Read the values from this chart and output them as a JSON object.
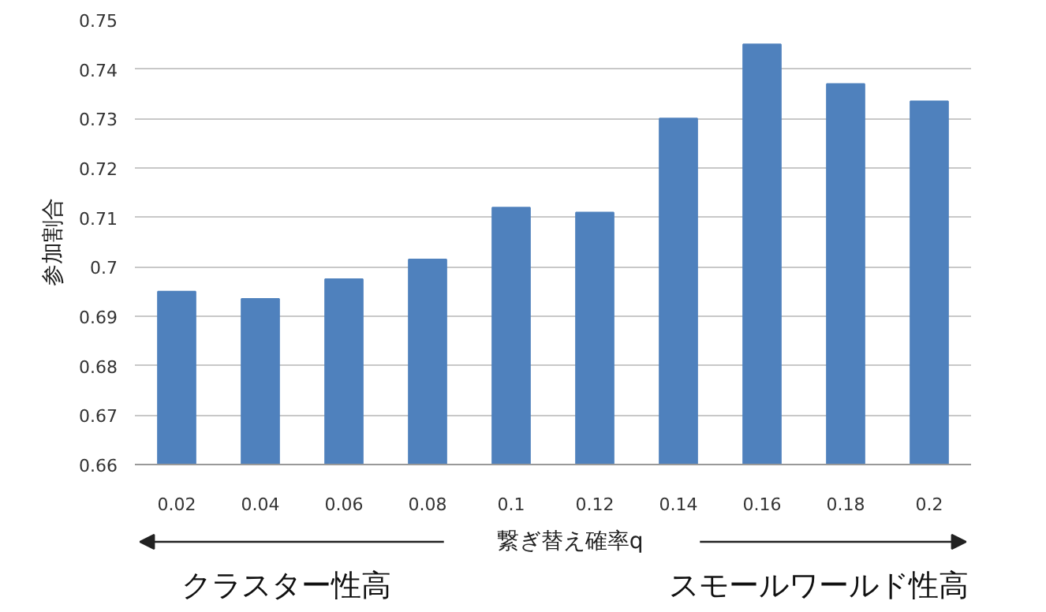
{
  "chart_data": {
    "type": "bar",
    "xlabel": "繋ぎ替え確率q",
    "ylabel": "参加割合",
    "categories": [
      "0.02",
      "0.04",
      "0.06",
      "0.08",
      "0.1",
      "0.12",
      "0.14",
      "0.16",
      "0.18",
      "0.2"
    ],
    "values": [
      0.695,
      0.6935,
      0.6975,
      0.7015,
      0.712,
      0.711,
      0.73,
      0.745,
      0.737,
      0.7335
    ],
    "color": "#4f81bd",
    "ylim": [
      0.66,
      0.75
    ],
    "yticks": [
      0.66,
      0.67,
      0.68,
      0.69,
      0.7,
      0.71,
      0.72,
      0.73,
      0.74,
      0.75
    ],
    "grid": "y",
    "annotations": [
      "クラスター性高",
      "スモールワールド性高"
    ]
  }
}
